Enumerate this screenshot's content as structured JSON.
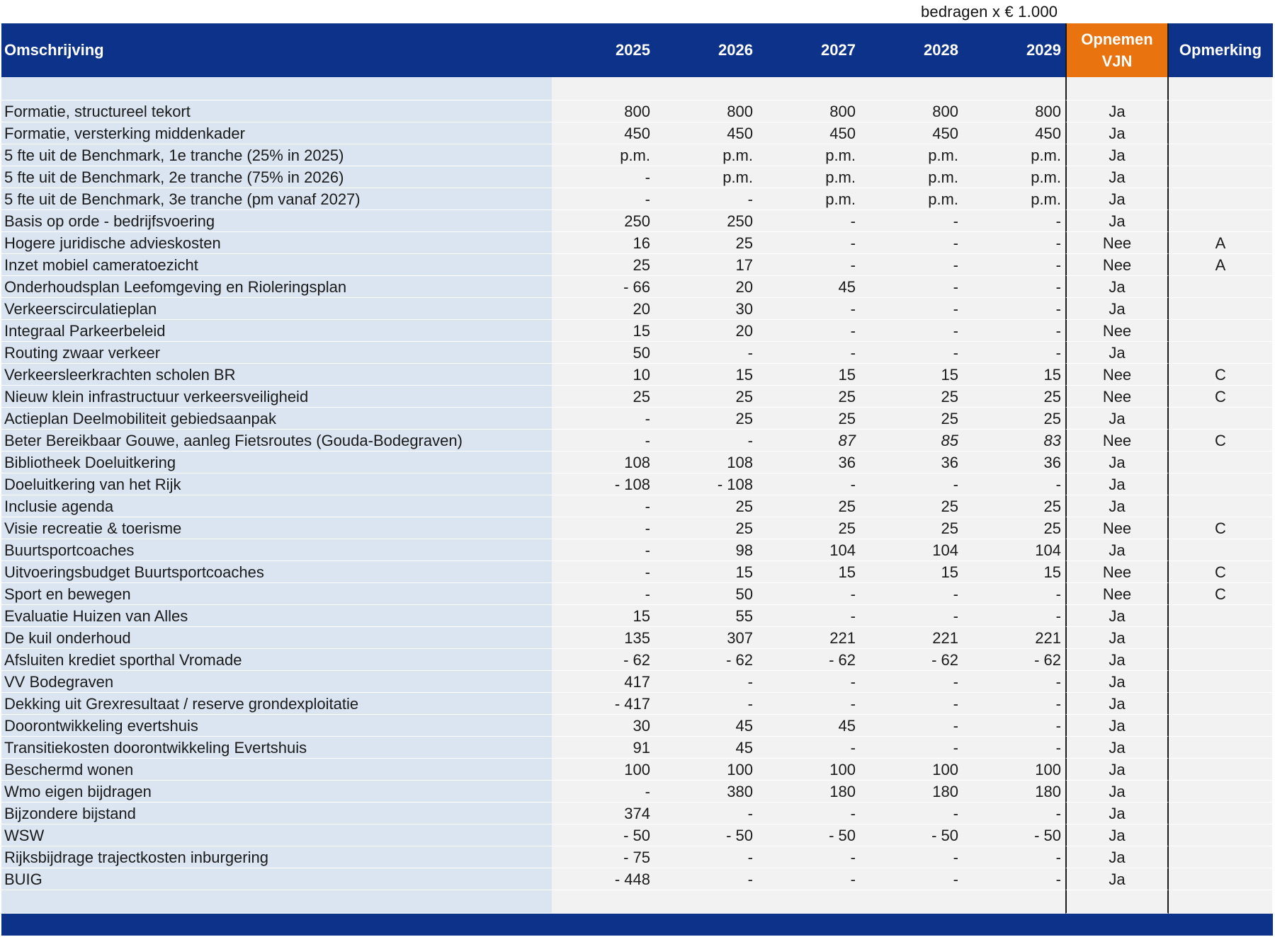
{
  "unit_note": "bedragen x € 1.000",
  "header": {
    "omschrijving": "Omschrijving",
    "years": [
      "2025",
      "2026",
      "2027",
      "2028",
      "2029"
    ],
    "opnemen_line1": "Opnemen",
    "opnemen_line2": "VJN",
    "opmerking": "Opmerking"
  },
  "rows": [
    {
      "desc": "Formatie, structureel tekort",
      "v": [
        "800",
        "800",
        "800",
        "800",
        "800"
      ],
      "vjn": "Ja",
      "opm": ""
    },
    {
      "desc": "Formatie, versterking middenkader",
      "v": [
        "450",
        "450",
        "450",
        "450",
        "450"
      ],
      "vjn": "Ja",
      "opm": ""
    },
    {
      "desc": "5 fte uit de Benchmark, 1e tranche (25% in 2025)",
      "v": [
        "p.m.",
        "p.m.",
        "p.m.",
        "p.m.",
        "p.m."
      ],
      "vjn": "Ja",
      "opm": ""
    },
    {
      "desc": "5 fte uit de Benchmark, 2e tranche (75% in 2026)",
      "v": [
        "-",
        "p.m.",
        "p.m.",
        "p.m.",
        "p.m."
      ],
      "vjn": "Ja",
      "opm": ""
    },
    {
      "desc": "5 fte uit de Benchmark, 3e tranche (pm vanaf 2027)",
      "v": [
        "-",
        "-",
        "p.m.",
        "p.m.",
        "p.m."
      ],
      "vjn": "Ja",
      "opm": ""
    },
    {
      "desc": "Basis op orde - bedrijfsvoering",
      "v": [
        "250",
        "250",
        "-",
        "-",
        "-"
      ],
      "vjn": "Ja",
      "opm": ""
    },
    {
      "desc": "Hogere juridische advieskosten",
      "v": [
        "16",
        "25",
        "-",
        "-",
        "-"
      ],
      "vjn": "Nee",
      "opm": "A"
    },
    {
      "desc": "Inzet mobiel cameratoezicht",
      "v": [
        "25",
        "17",
        "-",
        "-",
        "-"
      ],
      "vjn": "Nee",
      "opm": "A"
    },
    {
      "desc": "Onderhoudsplan Leefomgeving en Rioleringsplan",
      "v": [
        "- 66",
        "20",
        "45",
        "-",
        "-"
      ],
      "vjn": "Ja",
      "opm": ""
    },
    {
      "desc": "Verkeerscirculatieplan",
      "v": [
        "20",
        "30",
        "-",
        "-",
        "-"
      ],
      "vjn": "Ja",
      "opm": ""
    },
    {
      "desc": "Integraal Parkeerbeleid",
      "v": [
        "15",
        "20",
        "-",
        "-",
        "-"
      ],
      "vjn": "Nee",
      "opm": ""
    },
    {
      "desc": "Routing zwaar verkeer",
      "v": [
        "50",
        "-",
        "-",
        "-",
        "-"
      ],
      "vjn": "Ja",
      "opm": ""
    },
    {
      "desc": "Verkeersleerkrachten scholen BR",
      "v": [
        "10",
        "15",
        "15",
        "15",
        "15"
      ],
      "vjn": "Nee",
      "opm": "C"
    },
    {
      "desc": "Nieuw klein infrastructuur verkeersveiligheid",
      "v": [
        "25",
        "25",
        "25",
        "25",
        "25"
      ],
      "vjn": "Nee",
      "opm": "C"
    },
    {
      "desc": "Actieplan Deelmobiliteit gebiedsaanpak",
      "v": [
        "-",
        "25",
        "25",
        "25",
        "25"
      ],
      "vjn": "Ja",
      "opm": ""
    },
    {
      "desc": "Beter Bereikbaar Gouwe, aanleg Fietsroutes (Gouda-Bodegraven)",
      "v": [
        "-",
        "-",
        "87",
        "85",
        "83"
      ],
      "italic": [
        false,
        false,
        true,
        true,
        true
      ],
      "vjn": "Nee",
      "opm": "C"
    },
    {
      "desc": "Bibliotheek Doeluitkering",
      "v": [
        "108",
        "108",
        "36",
        "36",
        "36"
      ],
      "vjn": "Ja",
      "opm": ""
    },
    {
      "desc": "Doeluitkering van het Rijk",
      "v": [
        "- 108",
        "- 108",
        "-",
        "-",
        "-"
      ],
      "vjn": "Ja",
      "opm": ""
    },
    {
      "desc": "Inclusie agenda",
      "v": [
        "-",
        "25",
        "25",
        "25",
        "25"
      ],
      "vjn": "Ja",
      "opm": ""
    },
    {
      "desc": "Visie recreatie & toerisme",
      "v": [
        "-",
        "25",
        "25",
        "25",
        "25"
      ],
      "vjn": "Nee",
      "opm": "C"
    },
    {
      "desc": "Buurtsportcoaches",
      "v": [
        "-",
        "98",
        "104",
        "104",
        "104"
      ],
      "vjn": "Ja",
      "opm": ""
    },
    {
      "desc": "Uitvoeringsbudget Buurtsportcoaches",
      "v": [
        "-",
        "15",
        "15",
        "15",
        "15"
      ],
      "vjn": "Nee",
      "opm": "C"
    },
    {
      "desc": "Sport en bewegen",
      "v": [
        "-",
        "50",
        "-",
        "-",
        "-"
      ],
      "vjn": "Nee",
      "opm": "C"
    },
    {
      "desc": "Evaluatie Huizen van Alles",
      "v": [
        "15",
        "55",
        "-",
        "-",
        "-"
      ],
      "vjn": "Ja",
      "opm": ""
    },
    {
      "desc": "De kuil onderhoud",
      "v": [
        "135",
        "307",
        "221",
        "221",
        "221"
      ],
      "vjn": "Ja",
      "opm": ""
    },
    {
      "desc": "Afsluiten krediet sporthal Vromade",
      "v": [
        "- 62",
        "- 62",
        "- 62",
        "- 62",
        "- 62"
      ],
      "vjn": "Ja",
      "opm": ""
    },
    {
      "desc": "VV Bodegraven",
      "v": [
        "417",
        "-",
        "-",
        "-",
        "-"
      ],
      "vjn": "Ja",
      "opm": ""
    },
    {
      "desc": "Dekking uit Grexresultaat / reserve grondexploitatie",
      "v": [
        "- 417",
        "-",
        "-",
        "-",
        "-"
      ],
      "vjn": "Ja",
      "opm": ""
    },
    {
      "desc": "Doorontwikkeling evertshuis",
      "v": [
        "30",
        "45",
        "45",
        "-",
        "-"
      ],
      "vjn": "Ja",
      "opm": ""
    },
    {
      "desc": "Transitiekosten doorontwikkeling Evertshuis",
      "v": [
        "91",
        "45",
        "-",
        "-",
        "-"
      ],
      "vjn": "Ja",
      "opm": ""
    },
    {
      "desc": "Beschermd wonen",
      "v": [
        "100",
        "100",
        "100",
        "100",
        "100"
      ],
      "vjn": "Ja",
      "opm": ""
    },
    {
      "desc": "Wmo eigen bijdragen",
      "v": [
        "-",
        "380",
        "180",
        "180",
        "180"
      ],
      "vjn": "Ja",
      "opm": ""
    },
    {
      "desc": "Bijzondere bijstand",
      "v": [
        "374",
        "-",
        "-",
        "-",
        "-"
      ],
      "vjn": "Ja",
      "opm": ""
    },
    {
      "desc": "WSW",
      "v": [
        "- 50",
        "- 50",
        "- 50",
        "- 50",
        "- 50"
      ],
      "vjn": "Ja",
      "opm": ""
    },
    {
      "desc": "Rijksbijdrage trajectkosten inburgering",
      "v": [
        "- 75",
        "-",
        "-",
        "-",
        "-"
      ],
      "vjn": "Ja",
      "opm": ""
    },
    {
      "desc": "BUIG",
      "v": [
        "- 448",
        "-",
        "-",
        "-",
        "-"
      ],
      "vjn": "Ja",
      "opm": ""
    }
  ]
}
